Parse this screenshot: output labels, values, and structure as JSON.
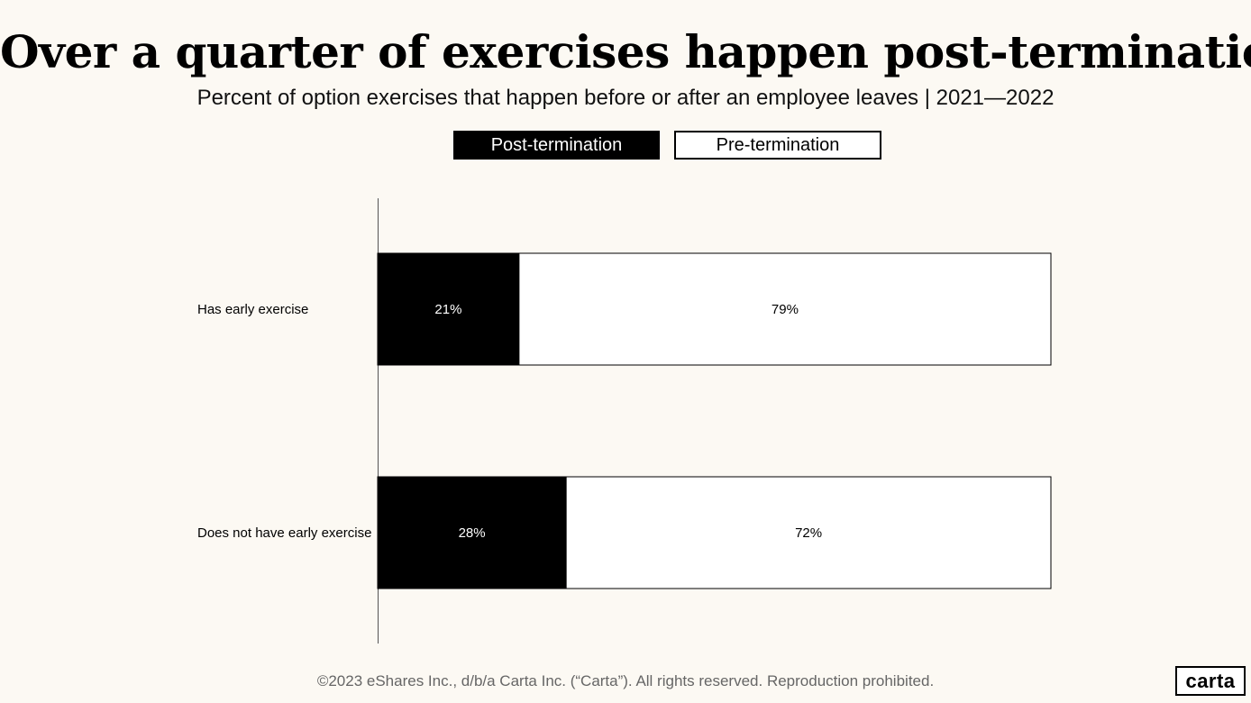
{
  "title": "Over a quarter of exercises happen post-termination",
  "subtitle": "Percent of option exercises that happen before or after an employee leaves | 2021—2022",
  "legend": {
    "post": "Post-termination",
    "pre": "Pre-termination"
  },
  "footer": "©2023 eShares Inc., d/b/a Carta Inc. (“Carta”). All rights reserved. Reproduction prohibited.",
  "logo": "carta",
  "colors": {
    "post": "#000000",
    "pre": "#ffffff",
    "background": "#fcf9f3"
  },
  "chart_data": {
    "type": "bar",
    "orientation": "horizontal",
    "stacked": true,
    "categories": [
      "Has early exercise",
      "Does not have early exercise"
    ],
    "series": [
      {
        "name": "Post-termination",
        "values": [
          21,
          28
        ],
        "labels": [
          "21%",
          "28%"
        ]
      },
      {
        "name": "Pre-termination",
        "values": [
          79,
          72
        ],
        "labels": [
          "79%",
          "72%"
        ]
      }
    ],
    "xlim": [
      0,
      100
    ],
    "legend": "top-center",
    "grid": false
  }
}
